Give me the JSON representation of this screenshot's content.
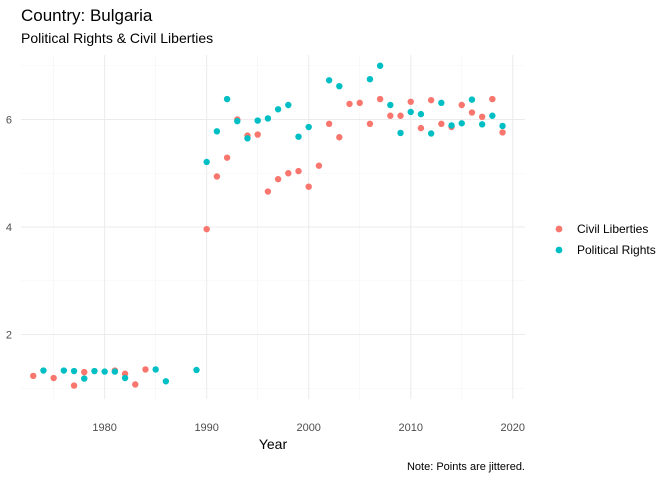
{
  "chart_data": {
    "type": "scatter",
    "title": "Country: Bulgaria",
    "subtitle": "Political Rights & Civil Liberties",
    "xlabel": "Year",
    "ylabel": "",
    "caption": "Note: Points are jittered.",
    "xlim": [
      1971.8,
      2021.2
    ],
    "ylim": [
      0.8,
      7.2
    ],
    "x_ticks": [
      1980,
      1990,
      2000,
      2010,
      2020
    ],
    "y_ticks": [
      2,
      4,
      6
    ],
    "grid": true,
    "legend_position": "right",
    "series": [
      {
        "name": "Civil Liberties",
        "color": "#F8766D",
        "points": [
          [
            1973,
            1.23
          ],
          [
            1975,
            1.19
          ],
          [
            1977,
            1.05
          ],
          [
            1978,
            1.3
          ],
          [
            1981,
            1.33
          ],
          [
            1982,
            1.27
          ],
          [
            1983,
            1.07
          ],
          [
            1984,
            1.35
          ],
          [
            1990,
            3.96
          ],
          [
            1991,
            4.94
          ],
          [
            1992,
            5.29
          ],
          [
            1993,
            6.0
          ],
          [
            1994,
            5.7
          ],
          [
            1995,
            5.72
          ],
          [
            1996,
            4.66
          ],
          [
            1997,
            4.89
          ],
          [
            1998,
            5.0
          ],
          [
            1999,
            5.04
          ],
          [
            2000,
            4.75
          ],
          [
            2001,
            5.14
          ],
          [
            2002,
            5.92
          ],
          [
            2003,
            5.67
          ],
          [
            2004,
            6.29
          ],
          [
            2005,
            6.31
          ],
          [
            2006,
            5.92
          ],
          [
            2007,
            6.38
          ],
          [
            2008,
            6.07
          ],
          [
            2009,
            6.07
          ],
          [
            2010,
            6.33
          ],
          [
            2011,
            5.84
          ],
          [
            2012,
            6.36
          ],
          [
            2013,
            5.92
          ],
          [
            2014,
            5.86
          ],
          [
            2015,
            6.27
          ],
          [
            2016,
            6.13
          ],
          [
            2017,
            6.05
          ],
          [
            2018,
            6.38
          ],
          [
            2019,
            5.76
          ]
        ]
      },
      {
        "name": "Political Rights",
        "color": "#00BFC4",
        "points": [
          [
            1974,
            1.33
          ],
          [
            1976,
            1.33
          ],
          [
            1977,
            1.32
          ],
          [
            1978,
            1.18
          ],
          [
            1979,
            1.32
          ],
          [
            1980,
            1.31
          ],
          [
            1981,
            1.31
          ],
          [
            1982,
            1.19
          ],
          [
            1985,
            1.35
          ],
          [
            1986,
            1.13
          ],
          [
            1989,
            1.34
          ],
          [
            1990,
            5.21
          ],
          [
            1991,
            5.78
          ],
          [
            1992,
            6.38
          ],
          [
            1993,
            5.97
          ],
          [
            1994,
            5.65
          ],
          [
            1995,
            5.98
          ],
          [
            1996,
            6.02
          ],
          [
            1997,
            6.19
          ],
          [
            1998,
            6.27
          ],
          [
            1999,
            5.68
          ],
          [
            2000,
            5.86
          ],
          [
            2002,
            6.73
          ],
          [
            2003,
            6.62
          ],
          [
            2006,
            6.75
          ],
          [
            2007,
            7.0
          ],
          [
            2008,
            6.27
          ],
          [
            2009,
            5.75
          ],
          [
            2010,
            6.14
          ],
          [
            2011,
            6.1
          ],
          [
            2012,
            5.74
          ],
          [
            2013,
            6.31
          ],
          [
            2014,
            5.89
          ],
          [
            2015,
            5.93
          ],
          [
            2016,
            6.37
          ],
          [
            2017,
            5.91
          ],
          [
            2018,
            6.07
          ],
          [
            2019,
            5.88
          ]
        ]
      }
    ]
  }
}
